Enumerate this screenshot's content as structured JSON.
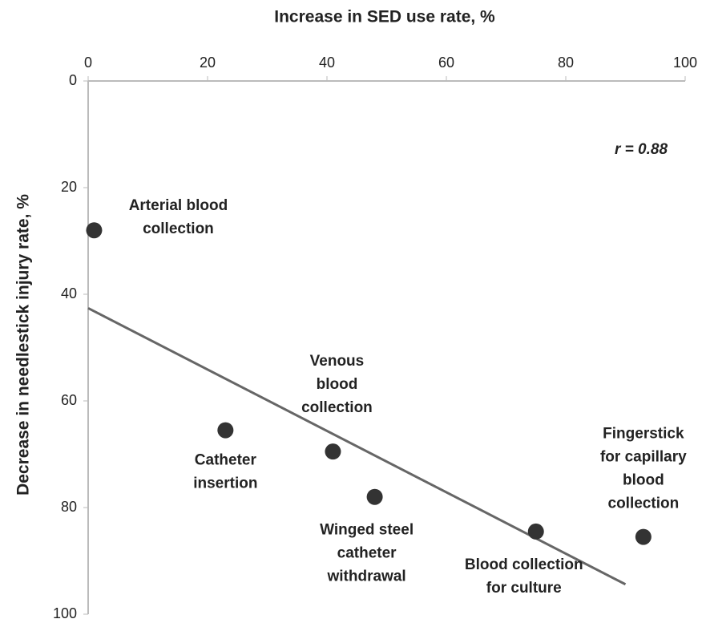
{
  "chart_data": {
    "type": "scatter",
    "x_label": "Increase in SED use rate, %",
    "y_label": "Decrease in needlestick injury rate, %",
    "x": [
      1,
      23,
      41,
      48,
      75,
      93
    ],
    "values": [
      28,
      65.5,
      69.5,
      78,
      84.5,
      85.5
    ],
    "point_labels": [
      [
        "Arterial blood",
        "collection"
      ],
      [
        "Catheter",
        "insertion"
      ],
      [
        "Venous",
        "blood",
        "collection"
      ],
      [
        "Winged steel",
        "catheter",
        "withdrawal"
      ],
      [
        "Blood collection",
        "for culture"
      ],
      [
        "Fingerstick",
        "for capillary",
        "blood",
        "collection"
      ]
    ],
    "color": "#333333",
    "trendline": {
      "x": [
        0,
        90
      ],
      "values": [
        42.6,
        94.4
      ],
      "color": "#666666"
    },
    "annotation": "r = 0.88",
    "xlim": [
      0,
      100
    ],
    "xticks": [
      0,
      20,
      40,
      60,
      80,
      100
    ],
    "ylim": [
      0,
      100
    ],
    "yticks": [
      0,
      20,
      40,
      60,
      80,
      100
    ],
    "y_inverted": true,
    "x_axis_position": "top",
    "grid": false
  }
}
